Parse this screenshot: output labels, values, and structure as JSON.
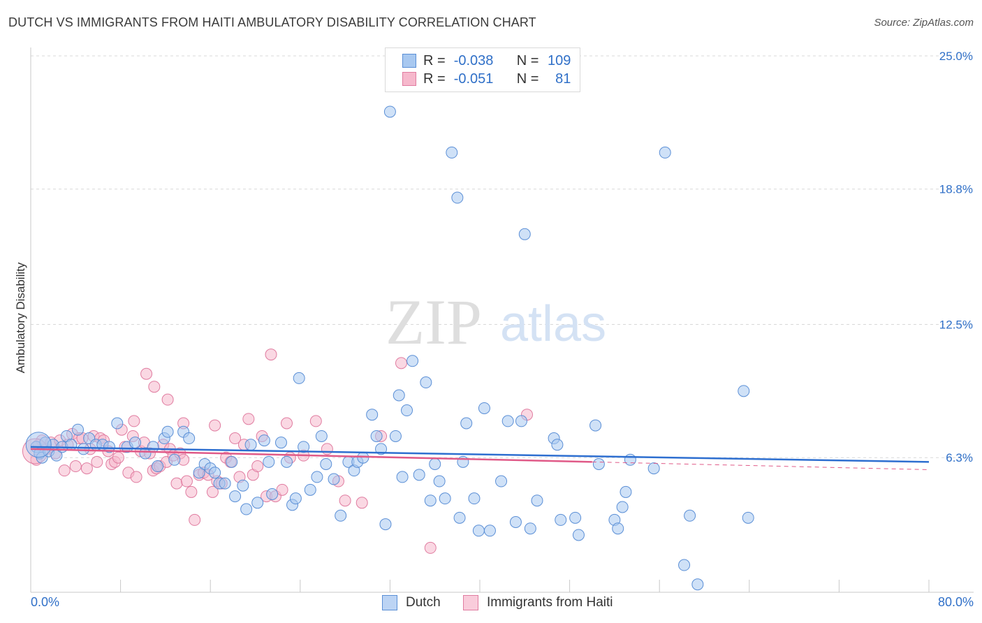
{
  "title": "DUTCH VS IMMIGRANTS FROM HAITI AMBULATORY DISABILITY CORRELATION CHART",
  "source": "Source: ZipAtlas.com",
  "watermark": {
    "zip": "ZIP",
    "atlas": "atlas"
  },
  "colors": {
    "dutch_fill": "#a8c8f0",
    "dutch_stroke": "#5b8fd6",
    "dutch_line": "#2e6fd0",
    "haiti_fill": "#f6b8cc",
    "haiti_stroke": "#e07ca0",
    "haiti_line": "#e05a88",
    "axis_label": "#3070c8",
    "grid": "#d8d8d8"
  },
  "legend": {
    "rows": [
      {
        "r_label": "R =",
        "r_value": "-0.038",
        "n_label": "N =",
        "n_value": "109"
      },
      {
        "r_label": "R =",
        "r_value": "-0.051",
        "n_label": "N =",
        "n_value": "81"
      }
    ]
  },
  "bottom_legend": {
    "dutch": "Dutch",
    "haiti": "Immigrants from Haiti"
  },
  "x_axis": {
    "min_label": "0.0%",
    "max_label": "80.0%"
  },
  "chart_data": {
    "type": "scatter",
    "title": "DUTCH VS IMMIGRANTS FROM HAITI AMBULATORY DISABILITY CORRELATION CHART",
    "xlabel": "",
    "ylabel": "Ambulatory Disability",
    "xlim": [
      0,
      80
    ],
    "ylim": [
      0,
      26
    ],
    "y_ticks": [
      6.3,
      12.5,
      18.8,
      25.0
    ],
    "y_tick_labels": [
      "6.3%",
      "12.5%",
      "18.8%",
      "25.0%"
    ],
    "grid": true,
    "series": [
      {
        "name": "Dutch",
        "trend": {
          "x": [
            0,
            80
          ],
          "y": [
            6.8,
            6.1
          ]
        },
        "points": [
          [
            0.5,
            6.8
          ],
          [
            0.8,
            6.5
          ],
          [
            1,
            6.3
          ],
          [
            1.3,
            7
          ],
          [
            1.6,
            6.6
          ],
          [
            2,
            6.9
          ],
          [
            2.3,
            6.4
          ],
          [
            2.8,
            6.8
          ],
          [
            3.2,
            7.3
          ],
          [
            3.6,
            6.9
          ],
          [
            4.2,
            7.6
          ],
          [
            4.7,
            6.7
          ],
          [
            5.2,
            7.2
          ],
          [
            5.8,
            6.9
          ],
          [
            6.4,
            6.9
          ],
          [
            7,
            6.8
          ],
          [
            7.7,
            7.9
          ],
          [
            8.6,
            6.8
          ],
          [
            9.3,
            7
          ],
          [
            10.2,
            6.5
          ],
          [
            10.9,
            6.8
          ],
          [
            11.3,
            5.9
          ],
          [
            11.9,
            7.2
          ],
          [
            12.2,
            7.5
          ],
          [
            12.8,
            6.2
          ],
          [
            13.6,
            7.5
          ],
          [
            14.1,
            7.2
          ],
          [
            15,
            5.6
          ],
          [
            15.5,
            6
          ],
          [
            16,
            5.8
          ],
          [
            16.4,
            5.6
          ],
          [
            16.8,
            5.1
          ],
          [
            17.3,
            5.1
          ],
          [
            17.9,
            6.1
          ],
          [
            18.2,
            4.5
          ],
          [
            18.9,
            5
          ],
          [
            19.2,
            3.9
          ],
          [
            19.6,
            6.9
          ],
          [
            20.2,
            4.2
          ],
          [
            20.8,
            7.1
          ],
          [
            21.2,
            6.1
          ],
          [
            21.5,
            4.6
          ],
          [
            22.3,
            7
          ],
          [
            22.8,
            6.1
          ],
          [
            23.3,
            4.1
          ],
          [
            23.6,
            4.4
          ],
          [
            23.9,
            10
          ],
          [
            24.3,
            6.8
          ],
          [
            24.9,
            4.8
          ],
          [
            25.5,
            5.4
          ],
          [
            25.9,
            7.3
          ],
          [
            26.3,
            6
          ],
          [
            27,
            5.3
          ],
          [
            27.6,
            3.6
          ],
          [
            28.3,
            6.1
          ],
          [
            28.8,
            5.7
          ],
          [
            29.1,
            6.1
          ],
          [
            29.6,
            6.3
          ],
          [
            30.4,
            8.3
          ],
          [
            30.8,
            7.3
          ],
          [
            31.2,
            6.7
          ],
          [
            31.6,
            3.2
          ],
          [
            32.5,
            7.3
          ],
          [
            32.8,
            9.2
          ],
          [
            33.1,
            5.4
          ],
          [
            33.5,
            8.5
          ],
          [
            34,
            10.8
          ],
          [
            34.6,
            5.5
          ],
          [
            35.2,
            9.8
          ],
          [
            35.6,
            4.3
          ],
          [
            36,
            6
          ],
          [
            36.4,
            5.2
          ],
          [
            36.9,
            4.4
          ],
          [
            37.5,
            20.5
          ],
          [
            38,
            18.4
          ],
          [
            38.2,
            3.5
          ],
          [
            38.5,
            6.1
          ],
          [
            38.8,
            7.9
          ],
          [
            39.5,
            4.4
          ],
          [
            39.9,
            2.9
          ],
          [
            40.4,
            8.6
          ],
          [
            40.9,
            2.9
          ],
          [
            41.9,
            5.2
          ],
          [
            42.5,
            8
          ],
          [
            43.2,
            3.3
          ],
          [
            43.7,
            8
          ],
          [
            44,
            16.7
          ],
          [
            44.5,
            3
          ],
          [
            45.1,
            4.3
          ],
          [
            46.6,
            7.2
          ],
          [
            46.9,
            6.9
          ],
          [
            47.2,
            3.4
          ],
          [
            48.5,
            3.5
          ],
          [
            48.8,
            2.7
          ],
          [
            50.3,
            7.8
          ],
          [
            50.6,
            6
          ],
          [
            52,
            3.4
          ],
          [
            52.3,
            3
          ],
          [
            52.7,
            4
          ],
          [
            53,
            4.7
          ],
          [
            53.4,
            6.2
          ],
          [
            55.5,
            5.8
          ],
          [
            56.5,
            20.5
          ],
          [
            58.2,
            1.3
          ],
          [
            58.7,
            3.6
          ],
          [
            59.4,
            0.4
          ],
          [
            63.5,
            9.4
          ],
          [
            63.9,
            3.5
          ],
          [
            32,
            22.4
          ]
        ],
        "big_points": [
          [
            0.7,
            6.9
          ]
        ]
      },
      {
        "name": "Immigrants from Haiti",
        "trend": {
          "x": [
            0,
            50
          ],
          "y": [
            6.7,
            6.1
          ]
        },
        "points": [
          [
            0.5,
            6.2
          ],
          [
            0.7,
            6.9
          ],
          [
            1,
            7.1
          ],
          [
            1.4,
            6.7
          ],
          [
            1.8,
            7
          ],
          [
            2.2,
            6.5
          ],
          [
            2.6,
            7.1
          ],
          [
            3,
            5.7
          ],
          [
            3.3,
            6.9
          ],
          [
            3.7,
            7.4
          ],
          [
            4,
            5.9
          ],
          [
            4.3,
            7.2
          ],
          [
            4.6,
            7.2
          ],
          [
            5,
            5.8
          ],
          [
            5.3,
            6.7
          ],
          [
            5.6,
            7.3
          ],
          [
            5.9,
            6.1
          ],
          [
            6.2,
            7.2
          ],
          [
            6.5,
            7.1
          ],
          [
            6.9,
            6.6
          ],
          [
            7.2,
            6
          ],
          [
            7.5,
            6.1
          ],
          [
            7.8,
            6.3
          ],
          [
            8.1,
            7.6
          ],
          [
            8.4,
            6.8
          ],
          [
            8.7,
            5.6
          ],
          [
            9.1,
            7.3
          ],
          [
            9.4,
            5.4
          ],
          [
            9.8,
            6.6
          ],
          [
            10.1,
            7
          ],
          [
            10.3,
            10.2
          ],
          [
            10.6,
            6.5
          ],
          [
            10.9,
            5.7
          ],
          [
            11.2,
            5.8
          ],
          [
            11.5,
            5.9
          ],
          [
            11.8,
            6.9
          ],
          [
            12.1,
            6.1
          ],
          [
            12.4,
            6.7
          ],
          [
            12.7,
            6.4
          ],
          [
            13,
            5.1
          ],
          [
            13.3,
            6.5
          ],
          [
            13.6,
            6.2
          ],
          [
            13.9,
            5.2
          ],
          [
            14.3,
            4.7
          ],
          [
            14.6,
            3.4
          ],
          [
            15,
            5.5
          ],
          [
            15.4,
            5.6
          ],
          [
            15.8,
            5.5
          ],
          [
            16.2,
            4.7
          ],
          [
            16.6,
            5.2
          ],
          [
            17,
            5.1
          ],
          [
            17.4,
            6.3
          ],
          [
            17.8,
            6.1
          ],
          [
            18.2,
            7.2
          ],
          [
            18.6,
            5.4
          ],
          [
            19,
            6.9
          ],
          [
            19.4,
            8.1
          ],
          [
            19.8,
            5.5
          ],
          [
            20.2,
            5.9
          ],
          [
            20.6,
            7.3
          ],
          [
            21,
            4.5
          ],
          [
            21.4,
            11.1
          ],
          [
            21.8,
            4.5
          ],
          [
            22.4,
            4.8
          ],
          [
            23.1,
            6.3
          ],
          [
            24.3,
            6.4
          ],
          [
            25.4,
            8
          ],
          [
            26.4,
            6.7
          ],
          [
            27.4,
            5.2
          ],
          [
            28,
            4.3
          ],
          [
            29.5,
            4.2
          ],
          [
            31.2,
            7.3
          ],
          [
            33,
            10.7
          ],
          [
            35.6,
            2.1
          ],
          [
            44.2,
            8.3
          ],
          [
            11,
            9.6
          ],
          [
            12.2,
            9
          ],
          [
            13.6,
            7.9
          ],
          [
            16.4,
            7.8
          ],
          [
            9.2,
            8
          ],
          [
            22.8,
            7.9
          ]
        ],
        "big_points": [
          [
            0.4,
            6.6
          ]
        ]
      }
    ]
  }
}
